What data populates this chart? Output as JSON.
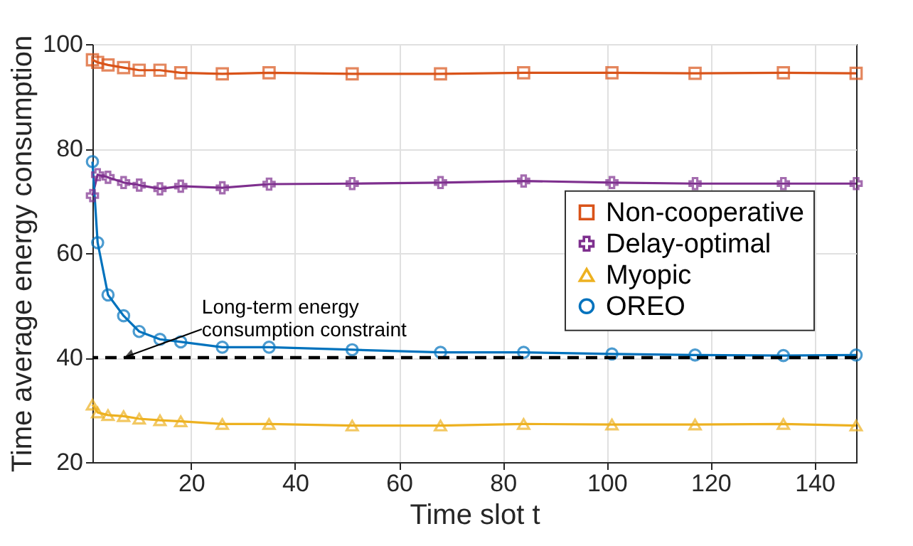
{
  "chart_data": {
    "type": "line",
    "xlabel": "Time slot t",
    "ylabel": "Time average energy consumption",
    "x": [
      1,
      2,
      4,
      7,
      10,
      14,
      18,
      26,
      35,
      51,
      68,
      84,
      101,
      117,
      134,
      148
    ],
    "series": [
      {
        "name": "Non-cooperative",
        "color": "#d95319",
        "marker": "square",
        "values": [
          97,
          96.5,
          96,
          95.5,
          95,
          95,
          94.5,
          94.3,
          94.5,
          94.3,
          94.3,
          94.5,
          94.5,
          94.4,
          94.5,
          94.4
        ]
      },
      {
        "name": "Delay-optimal",
        "color": "#7e2f8e",
        "marker": "cross",
        "values": [
          71,
          75,
          74.5,
          73.5,
          73,
          72.3,
          72.8,
          72.5,
          73.2,
          73.3,
          73.5,
          73.8,
          73.5,
          73.3,
          73.3,
          73.3
        ]
      },
      {
        "name": "Myopic",
        "color": "#edb120",
        "marker": "triangle",
        "values": [
          31,
          29.5,
          29,
          28.8,
          28.3,
          28,
          27.8,
          27.3,
          27.3,
          27,
          27,
          27.3,
          27.2,
          27.2,
          27.3,
          27
        ]
      },
      {
        "name": "OREO",
        "color": "#0072bd",
        "marker": "circle",
        "values": [
          77.5,
          62,
          52,
          48,
          45,
          43.5,
          43,
          42,
          42,
          41.5,
          41,
          41,
          40.7,
          40.5,
          40.4,
          40.5
        ]
      }
    ],
    "xlim": [
      1,
      148
    ],
    "xticks": [
      20,
      40,
      60,
      80,
      100,
      120,
      140
    ],
    "ylim": [
      20,
      100
    ],
    "yticks": [
      20,
      40,
      60,
      80,
      100
    ],
    "ref_lines": [
      {
        "axis": "y",
        "value": 40,
        "color": "#000000",
        "line_style": "dashed"
      }
    ],
    "annotations": [
      {
        "text": "Long-term energy\nconsumption constraint",
        "x": 7,
        "y": 40
      }
    ],
    "grid": true,
    "legend": "right",
    "line_style": "solid"
  }
}
